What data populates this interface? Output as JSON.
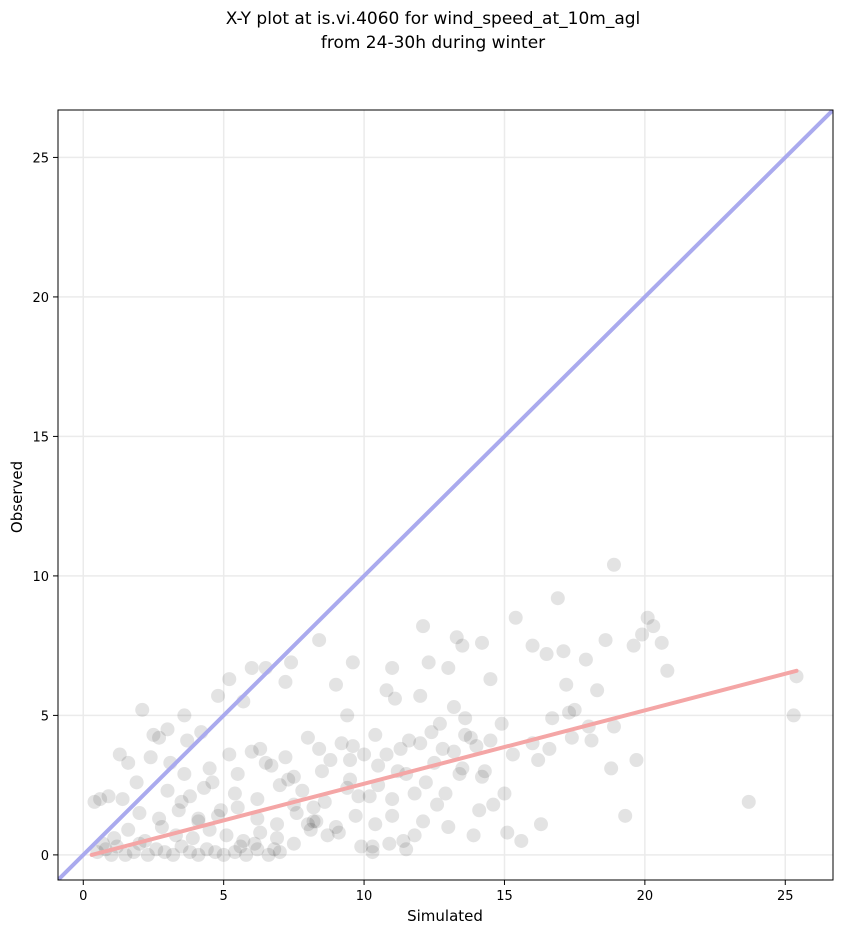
{
  "chart_data": {
    "type": "scatter",
    "title_lines": [
      "X-Y plot at is.vi.4060 for wind_speed_at_10m_agl",
      "from 24-30h during winter"
    ],
    "xlabel": "Simulated",
    "ylabel": "Observed",
    "xlim": [
      -0.9,
      26.7
    ],
    "ylim": [
      -0.9,
      26.7
    ],
    "xticks": [
      0,
      5,
      10,
      15,
      20,
      25
    ],
    "yticks": [
      0,
      5,
      10,
      15,
      20,
      25
    ],
    "grid": true,
    "colors": {
      "points": "#000000",
      "identity_line": "#aaaaee",
      "regression_line": "#f4a6a6",
      "grid": "#ebebeb"
    },
    "series": [
      {
        "kind": "identity-line",
        "x": [
          -0.9,
          26.7
        ],
        "y": [
          -0.9,
          26.7
        ]
      },
      {
        "kind": "regression-line",
        "x": [
          0.3,
          25.4
        ],
        "y": [
          0.0,
          6.6
        ]
      },
      {
        "kind": "points",
        "x": [
          18.9,
          16.9,
          20.1,
          20.3,
          15.4,
          16.0,
          16.5,
          17.1,
          17.9,
          18.6,
          19.6,
          19.9,
          20.6,
          12.1,
          13.3,
          13.5,
          12.3,
          8.4,
          9.6,
          11.0,
          13.0,
          6.5,
          7.4,
          10.8,
          14.2,
          14.5,
          11.1,
          12.0,
          9.4,
          9.0,
          7.2,
          5.2,
          4.8,
          18.9,
          18.3,
          18.0,
          17.3,
          20.8,
          25.4,
          25.3,
          23.7,
          19.3,
          15.1,
          15.6,
          16.3,
          16.7,
          17.2,
          17.5,
          16.0,
          15.3,
          14.9,
          13.6,
          13.2,
          12.7,
          12.9,
          13.9,
          11.8,
          11.5,
          10.3,
          10.9,
          9.9,
          8.2,
          7.5,
          6.3,
          6.0,
          5.7,
          2.1,
          3.6,
          4.2,
          3.0,
          2.7,
          1.3,
          1.6,
          0.9,
          0.6,
          0.4,
          3.5,
          4.1,
          19.7,
          18.8,
          18.1,
          16.6,
          16.2,
          17.4,
          14.3,
          15.0,
          14.6
        ],
        "y": [
          10.4,
          9.2,
          8.5,
          8.2,
          8.5,
          7.5,
          7.2,
          7.3,
          7.0,
          7.7,
          7.5,
          7.9,
          7.6,
          8.2,
          7.8,
          7.5,
          6.9,
          7.7,
          6.9,
          6.7,
          6.7,
          6.7,
          6.9,
          5.9,
          7.6,
          6.3,
          5.6,
          5.7,
          5.0,
          6.1,
          6.2,
          6.3,
          5.7,
          4.6,
          5.9,
          4.6,
          5.1,
          6.6,
          6.4,
          5.0,
          1.9,
          1.4,
          0.8,
          0.5,
          1.1,
          4.9,
          6.1,
          5.2,
          4.0,
          3.6,
          4.7,
          4.9,
          5.3,
          4.7,
          2.2,
          0.7,
          0.7,
          0.2,
          0.1,
          0.4,
          0.3,
          1.2,
          1.8,
          3.8,
          6.7,
          5.5,
          5.2,
          5.0,
          4.4,
          4.5,
          4.2,
          3.6,
          3.3,
          2.1,
          2.0,
          1.9,
          1.9,
          1.3,
          3.4,
          3.1,
          4.1,
          3.8,
          3.4,
          4.2,
          3.0,
          2.2,
          1.8
        ]
      },
      {
        "kind": "points-dense",
        "x": [
          0.5,
          0.8,
          1.0,
          1.2,
          1.5,
          1.8,
          2.0,
          2.3,
          2.6,
          2.9,
          3.2,
          3.5,
          3.8,
          4.1,
          4.4,
          4.7,
          5.0,
          5.4,
          5.8,
          6.2,
          6.6,
          7.0,
          1.1,
          1.6,
          2.2,
          2.8,
          3.3,
          3.9,
          4.5,
          5.1,
          5.7,
          6.3,
          6.9,
          7.5,
          8.1,
          8.7,
          2.0,
          2.7,
          3.4,
          4.1,
          4.8,
          5.5,
          6.2,
          6.9,
          7.6,
          8.3,
          9.0,
          9.7,
          10.4,
          3.0,
          3.8,
          4.6,
          5.4,
          6.2,
          7.0,
          7.8,
          8.6,
          9.4,
          10.2,
          11.0,
          11.8,
          12.6,
          4.5,
          5.5,
          6.5,
          7.5,
          8.5,
          9.5,
          10.5,
          11.5,
          12.5,
          13.5,
          14.2,
          6.0,
          7.2,
          8.4,
          9.6,
          10.8,
          12.0,
          13.2,
          14.0,
          8.0,
          9.2,
          10.4,
          11.6,
          12.8,
          13.8,
          9.5,
          10.5,
          11.2,
          12.2,
          13.4,
          1.4,
          2.4,
          3.6,
          4.9,
          6.1,
          7.3,
          8.8,
          10.0,
          11.3,
          12.4,
          13.6,
          14.5,
          0.7,
          1.9,
          3.1,
          4.3,
          5.6,
          6.8,
          8.0,
          9.1,
          10.3,
          11.4,
          2.5,
          3.7,
          5.2,
          6.7,
          8.2,
          9.8,
          11.0,
          12.1,
          13.0,
          14.1
        ],
        "y": [
          0.1,
          0.2,
          0.0,
          0.3,
          0.0,
          0.1,
          0.4,
          0.0,
          0.2,
          0.1,
          0.0,
          0.3,
          0.1,
          0.0,
          0.2,
          0.1,
          0.0,
          0.1,
          0.0,
          0.2,
          0.0,
          0.1,
          0.6,
          0.9,
          0.5,
          1.0,
          0.7,
          0.6,
          0.9,
          0.7,
          0.5,
          0.8,
          0.6,
          0.4,
          0.9,
          0.7,
          1.5,
          1.3,
          1.6,
          1.2,
          1.4,
          1.7,
          1.3,
          1.1,
          1.5,
          1.2,
          1.0,
          1.4,
          1.1,
          2.3,
          2.1,
          2.6,
          2.2,
          2.0,
          2.5,
          2.3,
          1.9,
          2.4,
          2.1,
          2.0,
          2.2,
          1.8,
          3.1,
          2.9,
          3.3,
          2.8,
          3.0,
          3.4,
          3.2,
          2.9,
          3.3,
          3.1,
          2.8,
          3.7,
          3.5,
          3.8,
          3.9,
          3.6,
          4.0,
          3.7,
          3.9,
          4.2,
          4.0,
          4.3,
          4.1,
          3.8,
          4.2,
          2.7,
          2.5,
          3.0,
          2.6,
          2.9,
          2.0,
          3.5,
          2.9,
          1.6,
          0.4,
          2.7,
          3.4,
          3.6,
          3.8,
          4.4,
          4.3,
          4.1,
          0.4,
          2.6,
          3.3,
          2.4,
          0.3,
          0.2,
          1.1,
          0.8,
          0.3,
          0.5,
          4.3,
          4.1,
          3.6,
          3.2,
          1.7,
          2.1,
          1.4,
          1.2,
          1.0,
          1.6
        ]
      }
    ]
  }
}
